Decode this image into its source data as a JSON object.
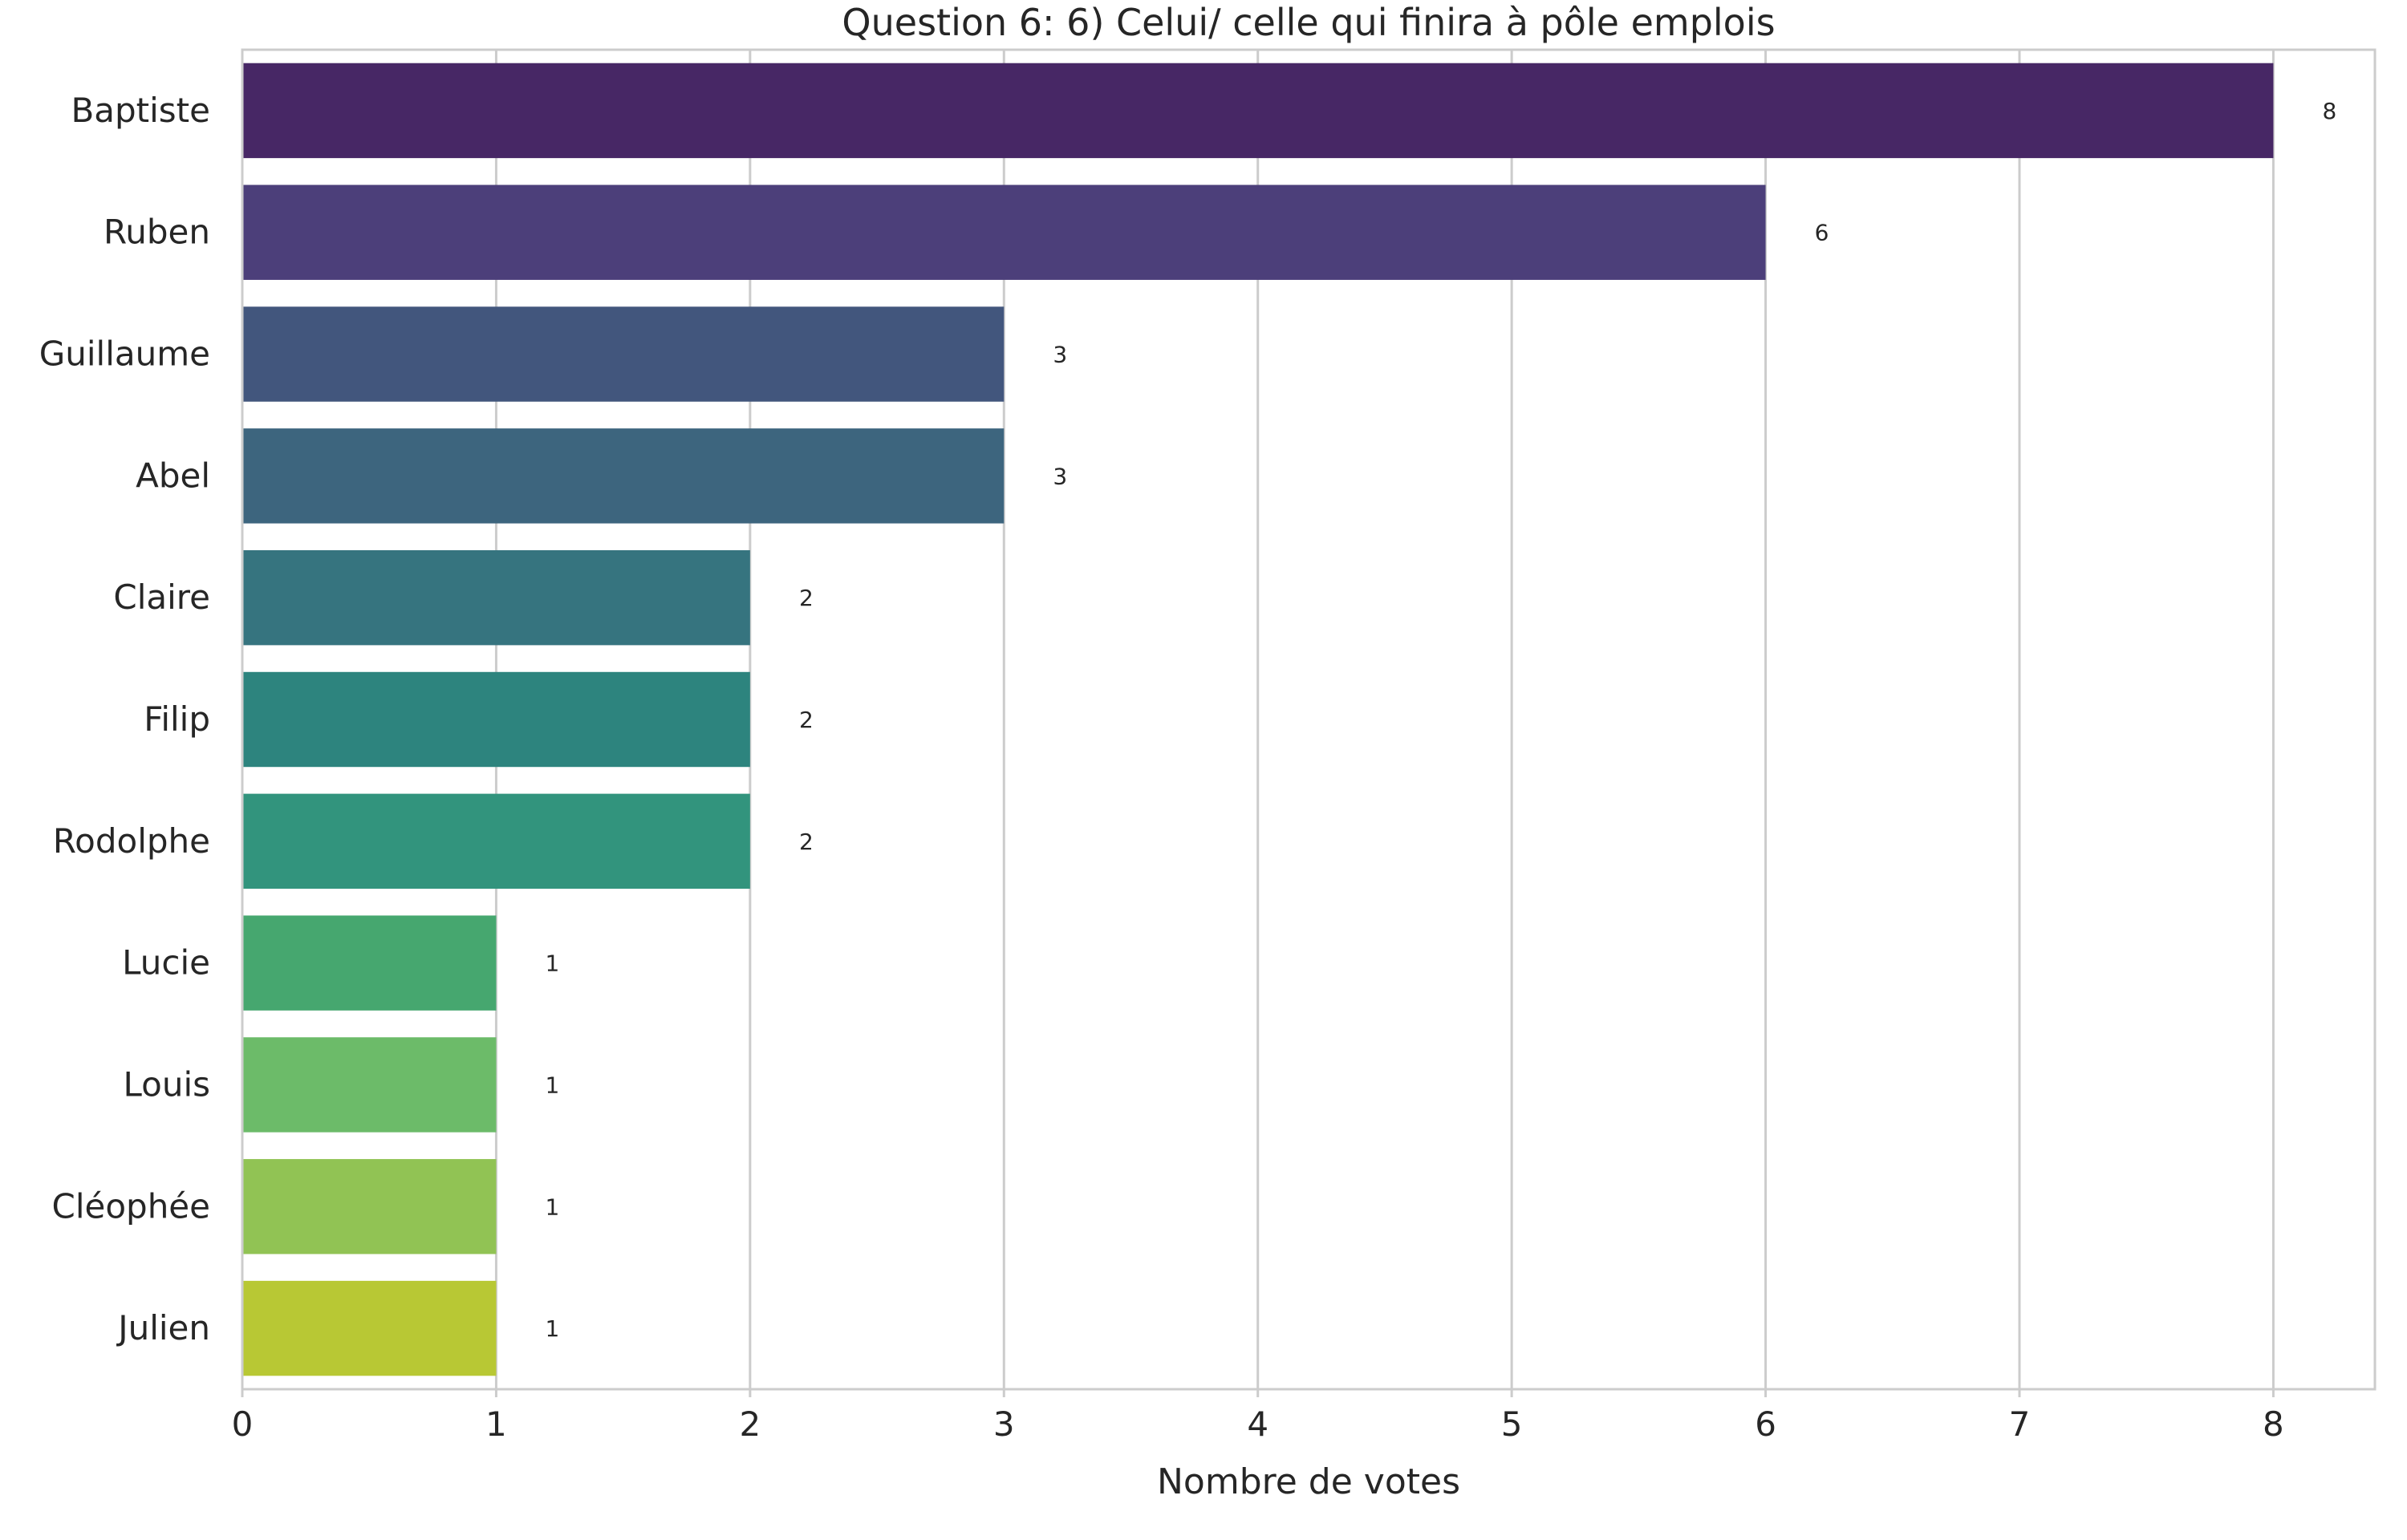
{
  "chart_data": {
    "type": "bar",
    "orientation": "horizontal",
    "title": "Question 6: 6) Celui/ celle qui finira à pôle emplois",
    "xlabel": "Nombre de votes",
    "ylabel": "",
    "xlim": [
      0,
      8.4
    ],
    "xticks": [
      "0",
      "1",
      "2",
      "3",
      "4",
      "5",
      "6",
      "7",
      "8"
    ],
    "grid": true,
    "categories": [
      "Baptiste",
      "Ruben",
      "Guillaume",
      "Abel",
      "Claire",
      "Filip",
      "Rodolphe",
      "Lucie",
      "Louis",
      "Cléophée",
      "Julien"
    ],
    "values": [
      8,
      6,
      3,
      3,
      2,
      2,
      2,
      1,
      1,
      1,
      1
    ],
    "value_labels": [
      "8",
      "6",
      "3",
      "3",
      "2",
      "2",
      "2",
      "1",
      "1",
      "1",
      "1"
    ],
    "colors": [
      "#472765",
      "#4c3f7a",
      "#42567d",
      "#3d657e",
      "#36747f",
      "#2d847e",
      "#32947d",
      "#46a76f",
      "#6cbb69",
      "#91c354",
      "#b8c834"
    ]
  }
}
